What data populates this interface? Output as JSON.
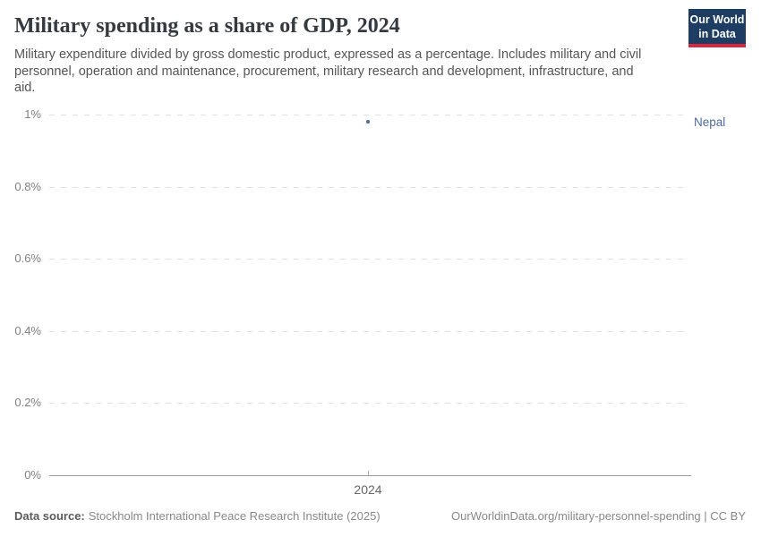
{
  "header": {
    "title": "Military spending as a share of GDP, 2024",
    "subtitle_lines": [
      "Military expenditure divided by gross domestic product, expressed as a percentage. Includes military and civil",
      "personnel, operation and maintenance, procurement, military research and development, infrastructure, and",
      "aid."
    ]
  },
  "logo": {
    "line1": "Our World",
    "line2": "in Data",
    "bg_color": "#1d3d63",
    "accent_color": "#d7263d"
  },
  "chart_data": {
    "type": "scatter",
    "title": "Military spending as a share of GDP, 2024",
    "x": [
      2024
    ],
    "series": [
      {
        "name": "Nepal",
        "values": [
          0.98
        ],
        "color": "#4c6a9c"
      }
    ],
    "ylim": [
      0,
      1
    ],
    "ylabel": "",
    "xlabel": "",
    "yticks": [
      {
        "label": "0%",
        "value": 0
      },
      {
        "label": "0.2%",
        "value": 0.2
      },
      {
        "label": "0.4%",
        "value": 0.4
      },
      {
        "label": "0.6%",
        "value": 0.6
      },
      {
        "label": "0.8%",
        "value": 0.8
      },
      {
        "label": "1%",
        "value": 1
      }
    ],
    "xticks": [
      {
        "label": "2024",
        "value": 2024
      }
    ],
    "grid": "horizontal-dashed",
    "legend_position": "right-of-point"
  },
  "footer": {
    "source_label": "Data source:",
    "source_text": "Stockholm International Peace Research Institute (2025)",
    "link_text": "OurWorldinData.org/military-personnel-spending | CC BY"
  }
}
